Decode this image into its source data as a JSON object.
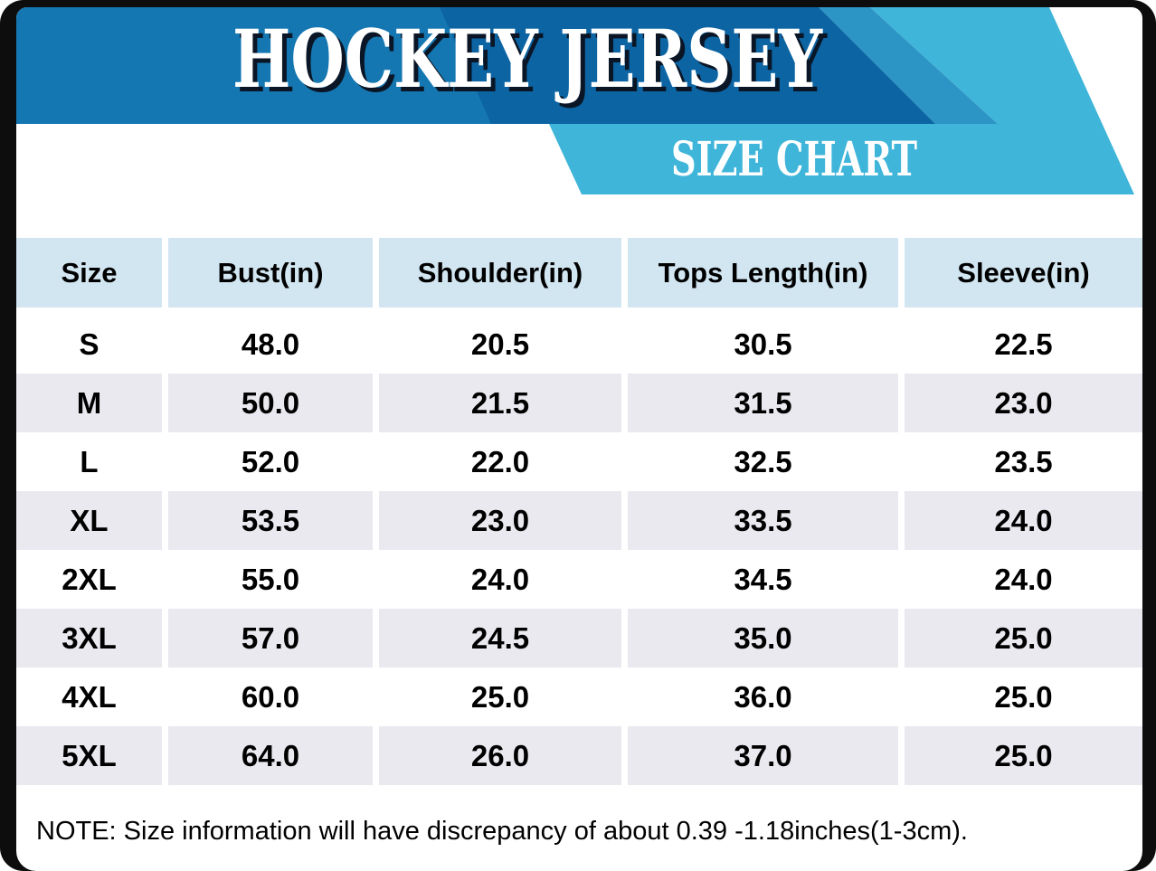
{
  "banner": {
    "title": "HOCKEY JERSEY",
    "subtitle": "SIZE CHART"
  },
  "table": {
    "columns": [
      "Size",
      "Bust(in)",
      "Shoulder(in)",
      "Tops Length(in)",
      "Sleeve(in)"
    ],
    "rows": [
      [
        "S",
        "48.0",
        "20.5",
        "30.5",
        "22.5"
      ],
      [
        "M",
        "50.0",
        "21.5",
        "31.5",
        "23.0"
      ],
      [
        "L",
        "52.0",
        "22.0",
        "32.5",
        "23.5"
      ],
      [
        "XL",
        "53.5",
        "23.0",
        "33.5",
        "24.0"
      ],
      [
        "2XL",
        "55.0",
        "24.0",
        "34.5",
        "24.0"
      ],
      [
        "3XL",
        "57.0",
        "24.5",
        "35.0",
        "25.0"
      ],
      [
        "4XL",
        "60.0",
        "25.0",
        "36.0",
        "25.0"
      ],
      [
        "5XL",
        "64.0",
        "26.0",
        "37.0",
        "25.0"
      ]
    ]
  },
  "note": "NOTE: Size information will have discrepancy of about 0.39 -1.18inches(1-3cm).",
  "colors": {
    "banner_dark": "#1577b1",
    "banner_navy": "#0c64a3",
    "banner_mid": "#2d95c5",
    "banner_light": "#3fb5d9",
    "title_shadow": "#0a1626",
    "header_cell": "#d2e6f1",
    "row_alt": "#e9e9ef",
    "frame": "#0d0d0d"
  },
  "chart_data": {
    "type": "table",
    "title": "HOCKEY JERSEY",
    "subtitle": "SIZE CHART",
    "units": "inches",
    "columns": [
      "Size",
      "Bust(in)",
      "Shoulder(in)",
      "Tops Length(in)",
      "Sleeve(in)"
    ],
    "rows": [
      [
        "S",
        48.0,
        20.5,
        30.5,
        22.5
      ],
      [
        "M",
        50.0,
        21.5,
        31.5,
        23.0
      ],
      [
        "L",
        52.0,
        22.0,
        32.5,
        23.5
      ],
      [
        "XL",
        53.5,
        23.0,
        33.5,
        24.0
      ],
      [
        "2XL",
        55.0,
        24.0,
        34.5,
        24.0
      ],
      [
        "3XL",
        57.0,
        24.5,
        35.0,
        25.0
      ],
      [
        "4XL",
        60.0,
        25.0,
        36.0,
        25.0
      ],
      [
        "5XL",
        64.0,
        26.0,
        37.0,
        25.0
      ]
    ],
    "note": "NOTE: Size information will have discrepancy of about 0.39 -1.18inches(1-3cm)."
  }
}
